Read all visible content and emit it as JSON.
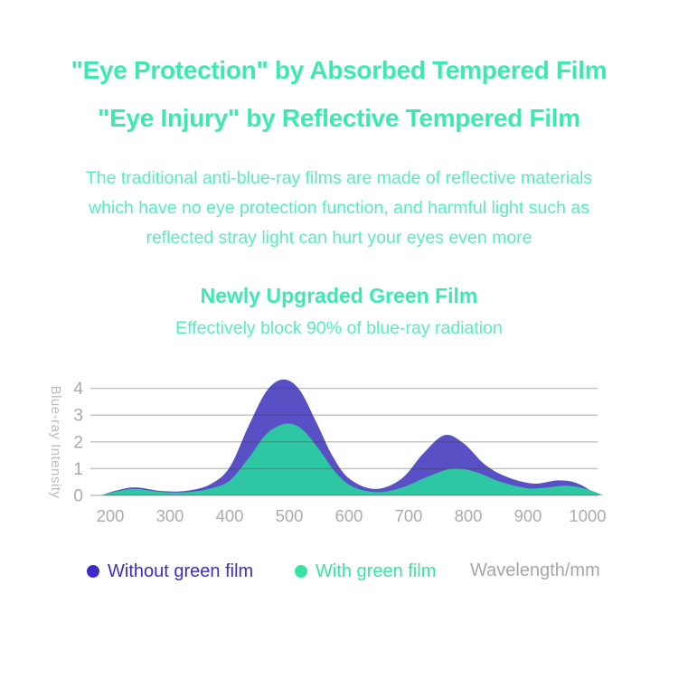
{
  "page": {
    "background": "#ffffff"
  },
  "header": {
    "title_line1": "\"Eye Protection\" by Absorbed Tempered Film",
    "title_line2": "\"Eye Injury\" by Reflective Tempered Film",
    "title_color": "#3ee9b1"
  },
  "intro": {
    "color": "#57ebc1",
    "lines": [
      "The traditional anti-blue-ray films are made of reflective materials",
      "which have no eye protection function, and harmful light such as",
      "reflected stray light can hurt your eyes even more"
    ]
  },
  "section": {
    "heading": "Newly Upgraded Green Film",
    "subheading": "Effectively block 90% of blue-ray radiation",
    "heading_color": "#3ee9b1",
    "subheading_color": "#57ebc1"
  },
  "chart_data": {
    "type": "area",
    "title": "",
    "xlabel": "Wavelength/mm",
    "ylabel": "Blue-ray Intensity",
    "x_ticks": [
      200,
      300,
      400,
      500,
      600,
      700,
      800,
      900,
      1000
    ],
    "y_ticks": [
      0,
      1,
      2,
      3,
      4
    ],
    "xlim": [
      185,
      1026
    ],
    "ylim": [
      0,
      4.5
    ],
    "grid": "horizontal-only",
    "grid_color": "rgba(60,60,60,0.32)",
    "axis_text_color": "#aaaaaa",
    "legend_position": "bottom",
    "series": [
      {
        "name": "Without green film",
        "color": "#5850c4",
        "legend_color": "#3d2cc7",
        "points": [
          [
            185,
            0
          ],
          [
            213,
            0.2
          ],
          [
            243,
            0.3
          ],
          [
            288,
            0.16
          ],
          [
            330,
            0.18
          ],
          [
            368,
            0.42
          ],
          [
            400,
            1.05
          ],
          [
            432,
            2.6
          ],
          [
            462,
            3.9
          ],
          [
            490,
            4.33
          ],
          [
            517,
            3.95
          ],
          [
            545,
            2.75
          ],
          [
            573,
            1.45
          ],
          [
            602,
            0.6
          ],
          [
            645,
            0.24
          ],
          [
            688,
            0.62
          ],
          [
            724,
            1.55
          ],
          [
            760,
            2.25
          ],
          [
            792,
            1.95
          ],
          [
            828,
            1.15
          ],
          [
            866,
            0.68
          ],
          [
            910,
            0.44
          ],
          [
            950,
            0.56
          ],
          [
            983,
            0.45
          ],
          [
            1018,
            0
          ]
        ]
      },
      {
        "name": "With green film",
        "color": "#2ec7a3",
        "legend_color": "#38e4a1",
        "points": [
          [
            185,
            0
          ],
          [
            213,
            0.16
          ],
          [
            243,
            0.24
          ],
          [
            288,
            0.12
          ],
          [
            330,
            0.12
          ],
          [
            368,
            0.26
          ],
          [
            400,
            0.55
          ],
          [
            432,
            1.4
          ],
          [
            462,
            2.3
          ],
          [
            493,
            2.68
          ],
          [
            520,
            2.5
          ],
          [
            549,
            1.75
          ],
          [
            577,
            0.88
          ],
          [
            606,
            0.33
          ],
          [
            648,
            0.12
          ],
          [
            690,
            0.3
          ],
          [
            730,
            0.68
          ],
          [
            773,
            1.0
          ],
          [
            812,
            0.88
          ],
          [
            852,
            0.52
          ],
          [
            898,
            0.27
          ],
          [
            930,
            0.29
          ],
          [
            964,
            0.36
          ],
          [
            998,
            0.24
          ],
          [
            1026,
            0
          ]
        ]
      }
    ]
  }
}
